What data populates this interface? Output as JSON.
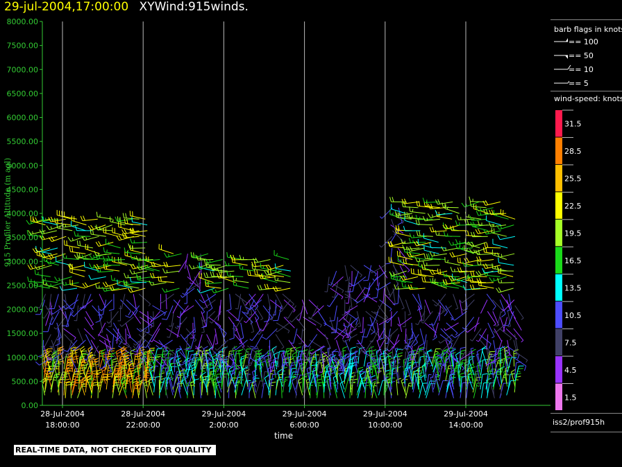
{
  "header": {
    "datetime": "29-jul-2004,17:00:00",
    "product": "XYWind:915winds."
  },
  "chart_data": {
    "type": "barb",
    "title": "XYWind:915winds.",
    "xlabel": "time",
    "ylabel": "915 Profiler Altitude (m agl)",
    "ylim": [
      0,
      8000
    ],
    "y_ticks": [
      "0.00",
      "500.00",
      "1000.00",
      "1500.00",
      "2000.00",
      "2500.00",
      "3000.00",
      "3500.00",
      "4000.00",
      "4500.00",
      "5000.00",
      "5500.00",
      "6000.00",
      "6500.00",
      "7000.00",
      "7500.00",
      "8000.00"
    ],
    "x_ticks": [
      {
        "date": "28-Jul-2004",
        "time": "18:00:00"
      },
      {
        "date": "28-Jul-2004",
        "time": "22:00:00"
      },
      {
        "date": "29-Jul-2004",
        "time": "2:00:00"
      },
      {
        "date": "29-Jul-2004",
        "time": "6:00:00"
      },
      {
        "date": "29-Jul-2004",
        "time": "10:00:00"
      },
      {
        "date": "29-Jul-2004",
        "time": "14:00:00"
      }
    ],
    "xlim_hours_from_first_tick": [
      -1,
      23
    ],
    "grid": "vertical lines at time ticks",
    "wind_speed_unit": "knots",
    "profiles_note": "wind barb profiles plotted every ~20 min from 28-Jul-2004 17:00 to 29-Jul-2004 17:00",
    "colors": {
      "axis": "#33cc33",
      "grid": "#bbbbbb",
      "background": "#000000"
    }
  },
  "legend": {
    "barb_title": "barb flags in knots",
    "barb_items": [
      "== 100",
      "== 50",
      "== 10",
      "== 5"
    ],
    "speed_title": "wind-speed: knots",
    "speed_items": [
      {
        "label": "31.5",
        "color": "#ff1a4d"
      },
      {
        "label": "28.5",
        "color": "#ff7f00"
      },
      {
        "label": "25.5",
        "color": "#ffbf00"
      },
      {
        "label": "22.5",
        "color": "#ffff00"
      },
      {
        "label": "19.5",
        "color": "#a6ff26"
      },
      {
        "label": "16.5",
        "color": "#1ad91a"
      },
      {
        "label": "13.5",
        "color": "#00ffff"
      },
      {
        "label": "10.5",
        "color": "#4d4dff"
      },
      {
        "label": "7.5",
        "color": "#404066"
      },
      {
        "label": "4.5",
        "color": "#9933ff"
      },
      {
        "label": "1.5",
        "color": "#ee77ee"
      }
    ],
    "source": "iss2/prof915h"
  },
  "footer": {
    "disclaimer": "REAL-TIME DATA, NOT CHECKED FOR QUALITY"
  }
}
